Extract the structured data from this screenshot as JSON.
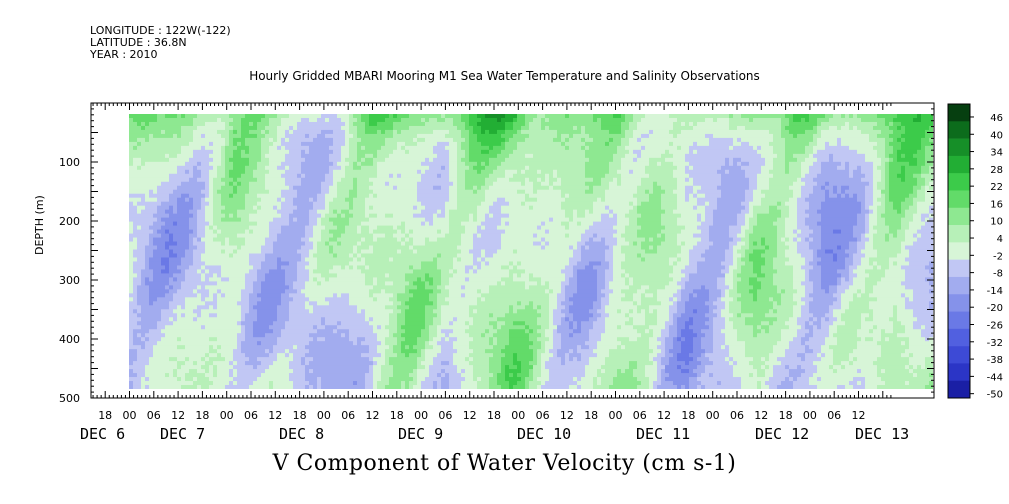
{
  "header": {
    "longitude": "LONGITUDE : 122W(-122)",
    "latitude": "LATITUDE : 36.8N",
    "year": "YEAR : 2010"
  },
  "chart_data": {
    "type": "heatmap",
    "title": "Hourly Gridded MBARI Mooring M1 Sea Water Temperature and Salinity Observations",
    "xlabel": "",
    "ylabel": "DEPTH (m)",
    "footer_title": "V Component of Water Velocity (cm s-1)",
    "units": "cm s-1",
    "ylim": [
      500,
      0
    ],
    "y_ticks": [
      100,
      200,
      300,
      400,
      500
    ],
    "x_hour_ticks": [
      "18",
      "00",
      "06",
      "12",
      "18",
      "00",
      "06",
      "12",
      "18",
      "00",
      "06",
      "12",
      "18",
      "00",
      "06",
      "12",
      "18",
      "00",
      "06",
      "12",
      "18",
      "00",
      "06",
      "12",
      "18",
      "00",
      "06",
      "12",
      "18",
      "00",
      "06",
      "12"
    ],
    "x_day_labels": [
      "DEC  6",
      "DEC  7",
      "DEC  8",
      "DEC  9",
      "DEC 10",
      "DEC 11",
      "DEC 12",
      "DEC 13"
    ],
    "colorbar": {
      "levels": [
        -50,
        -44,
        -38,
        -32,
        -26,
        -20,
        -14,
        -8,
        -2,
        4,
        10,
        16,
        22,
        28,
        34,
        40,
        46
      ],
      "labels": [
        "46",
        "40",
        "34",
        "28",
        "22",
        "16",
        "10",
        "4",
        "-2",
        "-8",
        "-14",
        "-20",
        "-26",
        "-32",
        "-38",
        "-44",
        "-50"
      ],
      "colors": [
        "#1a1fa5",
        "#2b35c6",
        "#3d4ad6",
        "#5160e0",
        "#6a79e6",
        "#8592ea",
        "#a2acef",
        "#c1c7f4",
        "#d7f5d7",
        "#b7f0b8",
        "#8ee891",
        "#62db69",
        "#3ccb4a",
        "#22ae34",
        "#168f28",
        "#0c6c1c",
        "#063f10"
      ]
    },
    "depth_profile_note": "",
    "days": [
      "DEC 6",
      "DEC 7",
      "DEC 8",
      "DEC 9",
      "DEC 10",
      "DEC 11",
      "DEC 12",
      "DEC 13"
    ],
    "column_means_cm_s": [
      -4,
      -8,
      -6,
      4,
      -6,
      -10,
      -4,
      6,
      10,
      -4,
      8,
      12,
      -2,
      -6,
      6,
      4,
      -10,
      -8,
      8,
      2,
      -12,
      -6,
      10,
      2
    ]
  }
}
